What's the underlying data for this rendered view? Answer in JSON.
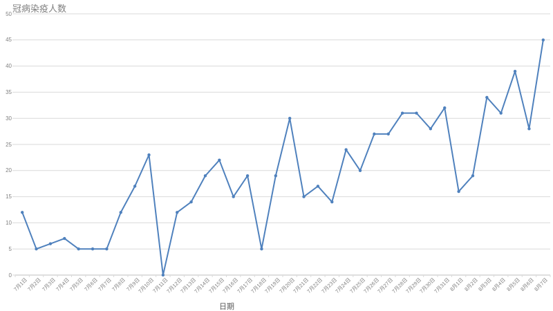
{
  "chart": {
    "title": "冠病染疫人数",
    "x_axis_title": "日期",
    "colors": {
      "background": "#ffffff",
      "line": "#4f81bd",
      "marker": "#4f81bd",
      "grid": "#d9d9d9",
      "axis_line": "#bfbfbf",
      "tick": "#d9d9d9",
      "tick_label": "#808080",
      "title": "#7f7f7f",
      "axis_title": "#595959"
    }
  },
  "chart_data": {
    "type": "line",
    "title": "冠病染疫人数",
    "xlabel": "日期",
    "ylabel": "",
    "categories": [
      "7月1日",
      "7月2日",
      "7月3日",
      "7月4日",
      "7月5日",
      "7月6日",
      "7月7日",
      "7月8日",
      "7月9日",
      "7月10日",
      "7月11日",
      "7月12日",
      "7月13日",
      "7月14日",
      "7月15日",
      "7月16日",
      "7月17日",
      "7月18日",
      "7月19日",
      "7月20日",
      "7月21日",
      "7月22日",
      "7月23日",
      "7月24日",
      "7月25日",
      "7月26日",
      "7月27日",
      "7月28日",
      "7月29日",
      "7月30日",
      "7月31日",
      "8月1日",
      "8月2日",
      "8月3日",
      "8月4日",
      "8月5日",
      "8月6日",
      "8月7日"
    ],
    "values": [
      12,
      5,
      6,
      7,
      5,
      5,
      5,
      12,
      17,
      23,
      0,
      12,
      14,
      19,
      22,
      15,
      19,
      5,
      19,
      30,
      15,
      17,
      14,
      24,
      20,
      27,
      27,
      31,
      31,
      28,
      32,
      16,
      19,
      34,
      31,
      39,
      28,
      45
    ],
    "ylim": [
      0,
      50
    ],
    "y_tick_step": 5,
    "grid": true,
    "legend": false,
    "marker": "circle",
    "x_tick_rotation_deg": 45
  }
}
